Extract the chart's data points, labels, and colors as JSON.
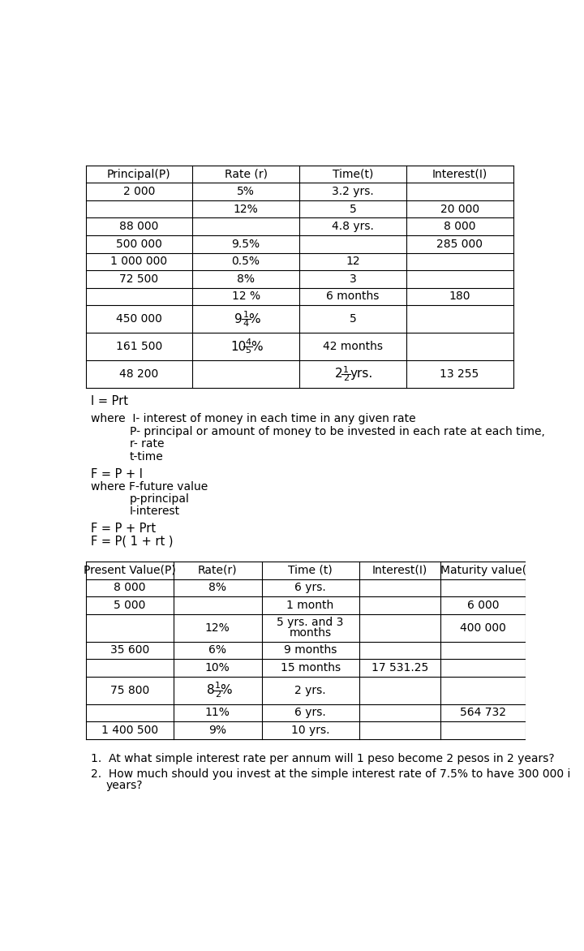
{
  "bg_color": "#ffffff",
  "t1_headers": [
    "Principal(P)",
    "Rate (r)",
    "Time(t)",
    "Interest(I)"
  ],
  "t1_rows": [
    [
      "2 000",
      "5%",
      "3.2 yrs.",
      ""
    ],
    [
      "",
      "12%",
      "5",
      "20 000"
    ],
    [
      "88 000",
      "",
      "4.8 yrs.",
      "8 000"
    ],
    [
      "500 000",
      "9.5%",
      "",
      "285 000"
    ],
    [
      "1 000 000",
      "0.5%",
      "12",
      ""
    ],
    [
      "72 500",
      "8%",
      "3",
      ""
    ],
    [
      "",
      "12 %",
      "6 months",
      "180"
    ],
    [
      "450 000",
      "FRAC:9:1:4:%",
      "5",
      ""
    ],
    [
      "161 500",
      "FRAC:10:4:5:%",
      "42 months",
      ""
    ],
    [
      "48 200",
      "",
      "FRAC:2:1:2:yrs.",
      "13 255"
    ]
  ],
  "t2_headers": [
    "Present Value(P)",
    "Rate(r)",
    "Time (t)",
    "Interest(I)",
    "Maturity value("
  ],
  "t2_rows": [
    [
      "8 000",
      "8%",
      "6 yrs.",
      "",
      ""
    ],
    [
      "5 000",
      "",
      "1 month",
      "",
      "6 000"
    ],
    [
      "",
      "12%",
      "5 yrs. and 3\nmonths",
      "",
      "400 000"
    ],
    [
      "35 600",
      "6%",
      "9 months",
      "",
      ""
    ],
    [
      "",
      "10%",
      "15 months",
      "17 531.25",
      ""
    ],
    [
      "75 800",
      "FRAC:8:1:2:%",
      "2 yrs.",
      "",
      ""
    ],
    [
      "",
      "11%",
      "6 yrs.",
      "",
      "564 732"
    ],
    [
      "1 400 500",
      "9%",
      "10 yrs.",
      "",
      ""
    ]
  ]
}
